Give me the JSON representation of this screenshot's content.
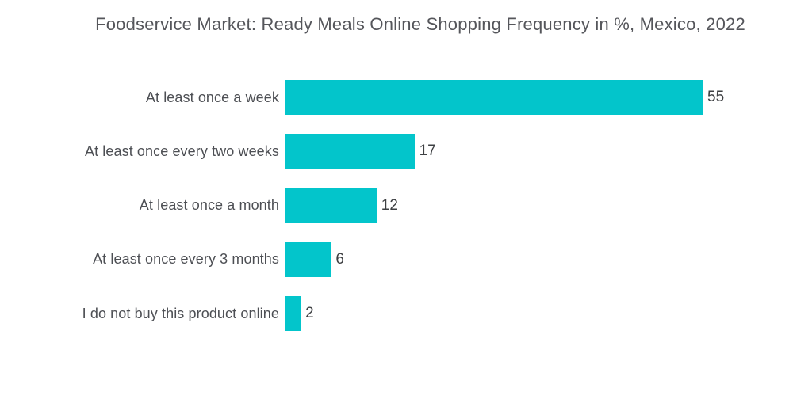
{
  "title": "Foodservice Market: Ready Meals Online Shopping Frequency in %, Mexico, 2022",
  "colors": {
    "bar": "#03C5CB",
    "title_text": "#55565B",
    "category_text": "#4D4F54",
    "value_text": "#3E4043",
    "background": "#FFFFFF"
  },
  "chart_data": {
    "type": "bar",
    "orientation": "horizontal",
    "title": "Foodservice Market: Ready Meals Online Shopping Frequency in %, Mexico, 2022",
    "categories": [
      "At least once a week",
      "At least once every two weeks",
      "At least once a month",
      "At least once every 3 months",
      "I do not buy this product online"
    ],
    "values": [
      55,
      17,
      12,
      6,
      2
    ],
    "unit": "%",
    "xlabel": "",
    "ylabel": "",
    "xlim": [
      0,
      55
    ],
    "grid": false,
    "legend": false,
    "value_labels_shown": true
  }
}
